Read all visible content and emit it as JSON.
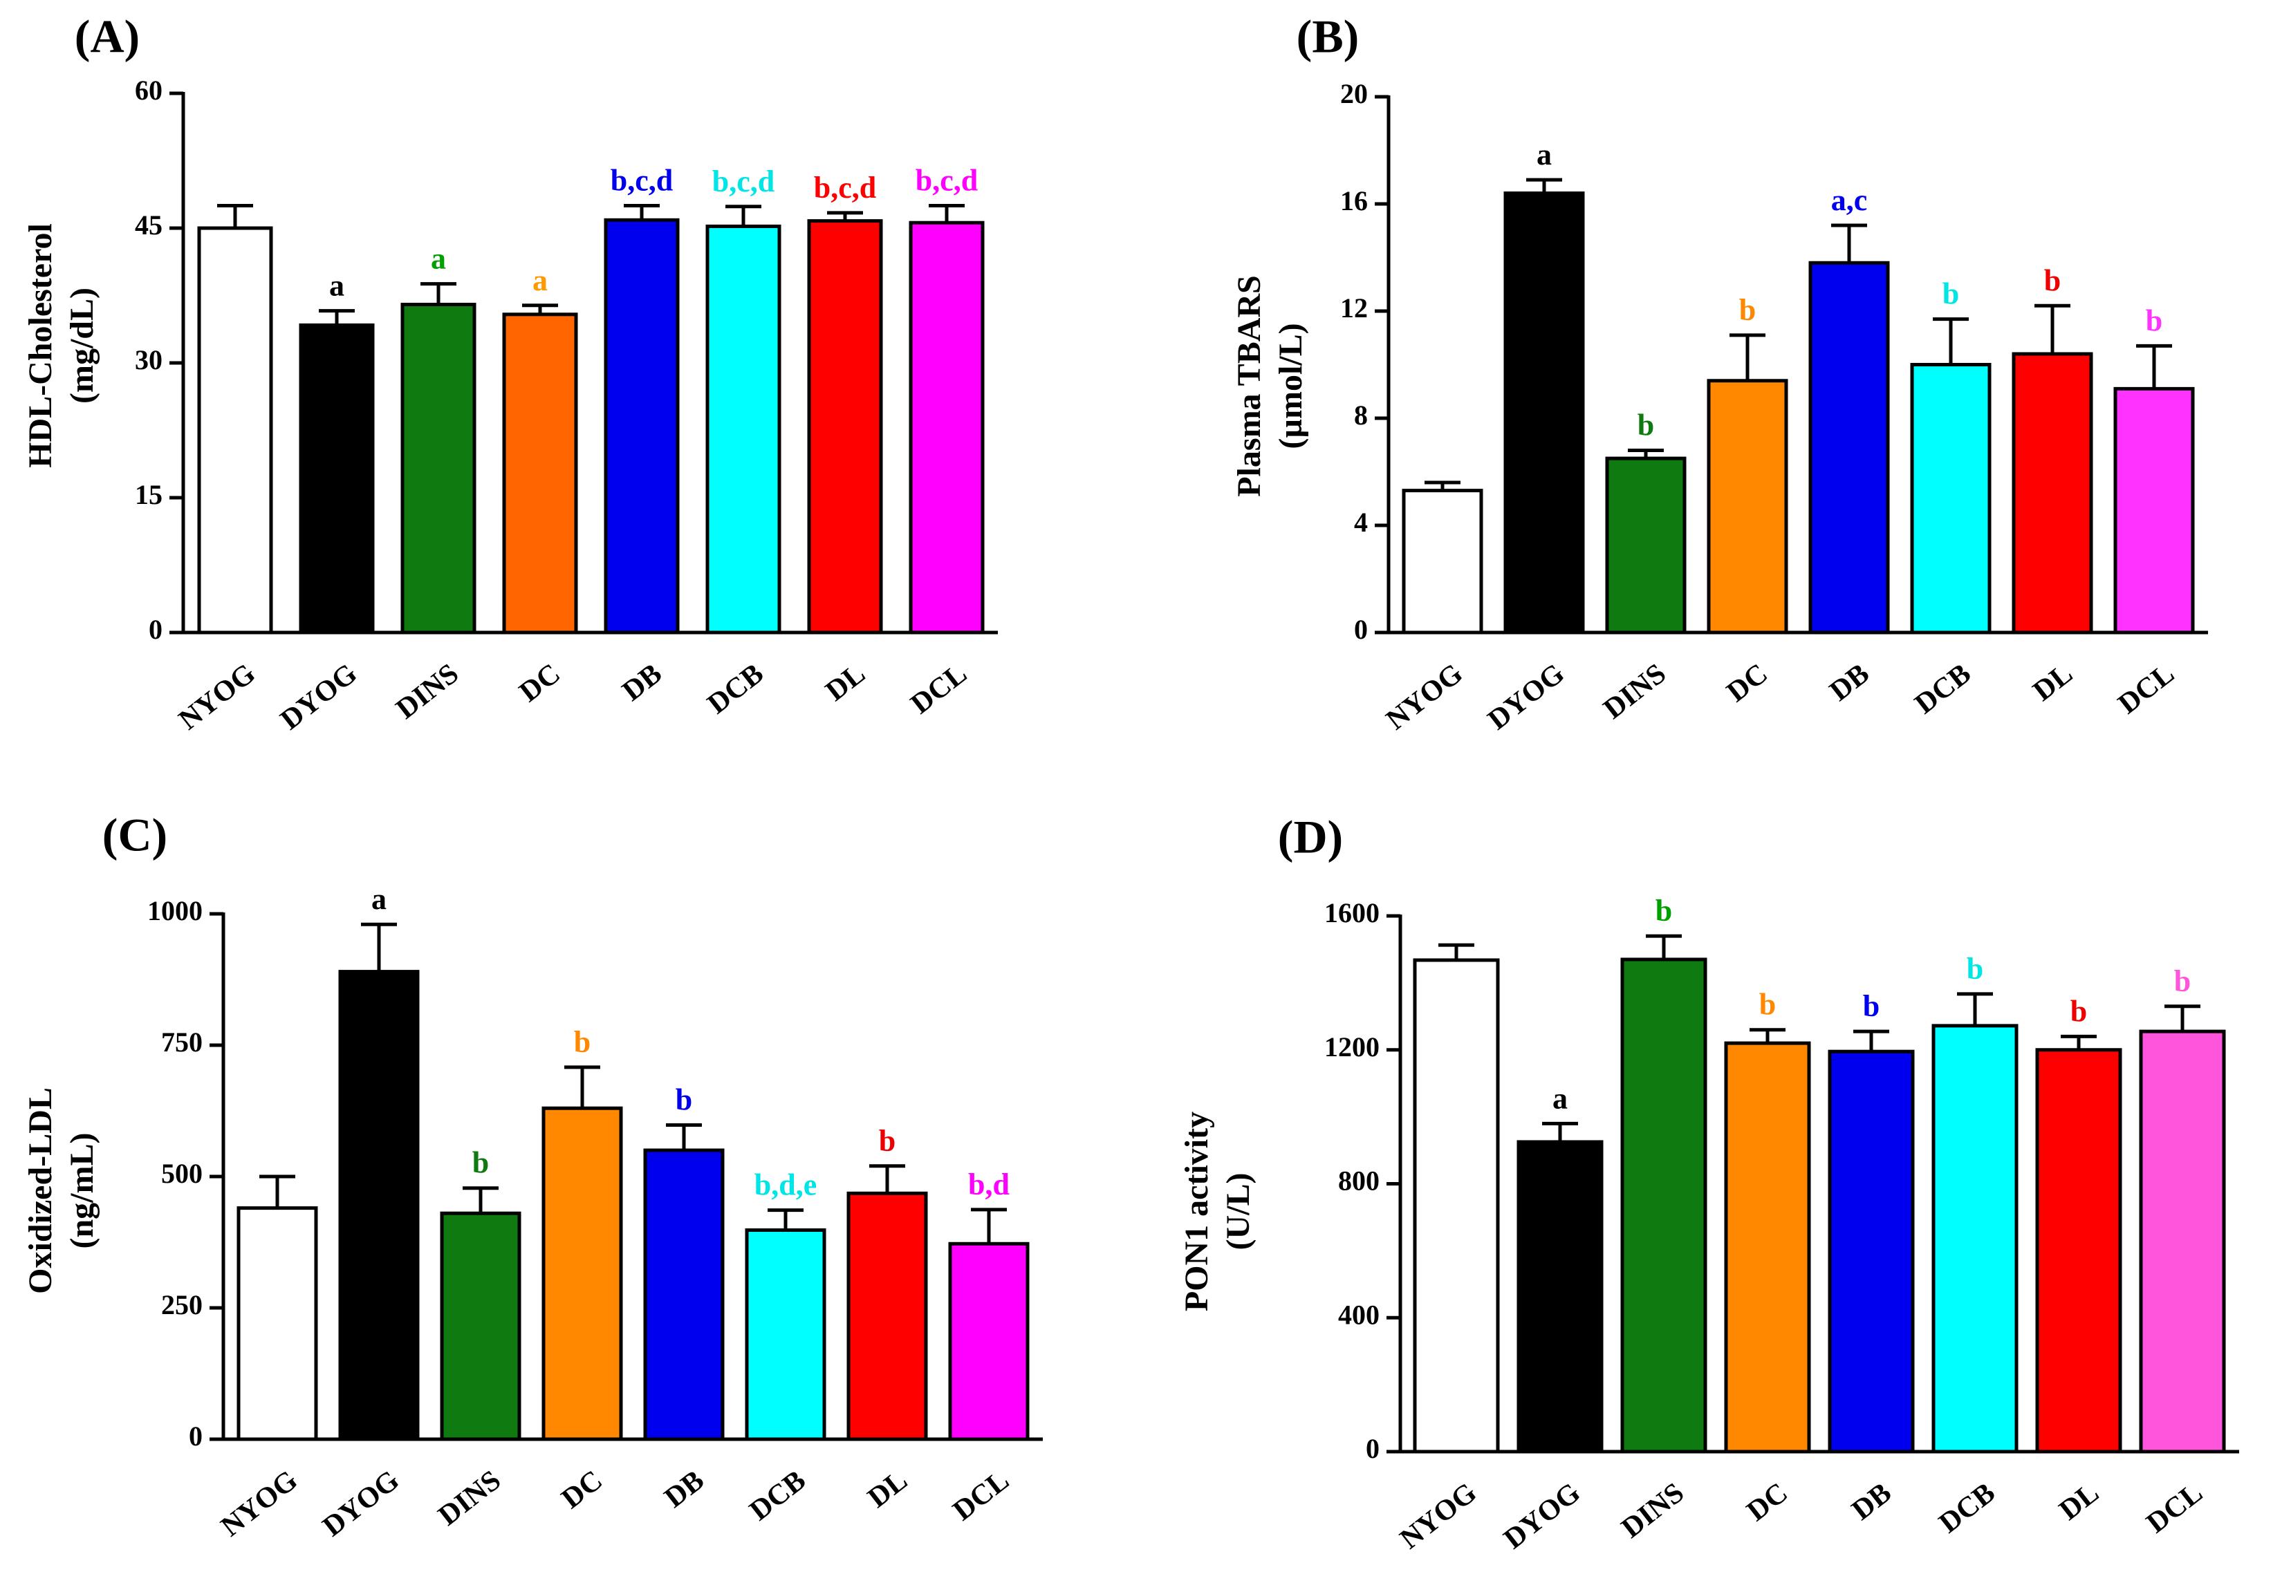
{
  "chart_data": [
    {
      "type": "bar",
      "panel_label": "(A)",
      "ylabel_lines": [
        "HDL-Cholesterol",
        "(mg/dL)"
      ],
      "categories": [
        "NYOG",
        "DYOG",
        "DINS",
        "DC",
        "DB",
        "DCB",
        "DL",
        "DCL"
      ],
      "values": [
        45,
        34.2,
        36.5,
        35.4,
        45.9,
        45.2,
        45.8,
        45.6
      ],
      "errors": [
        2.5,
        1.6,
        2.3,
        1.0,
        1.6,
        2.2,
        0.9,
        1.9
      ],
      "significance": [
        "",
        "a",
        "a",
        "a",
        "b,c,d",
        "b,c,d",
        "b,c,d",
        "b,c,d"
      ],
      "ylim": [
        0,
        60
      ],
      "yticks": [
        0,
        15,
        30,
        45,
        60
      ],
      "colors": [
        "#ffffff",
        "#000000",
        "#0f7a0f",
        "#ff6600",
        "#0000ee",
        "#00ffff",
        "#ff0000",
        "#ff00ff"
      ],
      "label_colors": [
        "#000000",
        "#000000",
        "#00a000",
        "#ff9900",
        "#0000ee",
        "#00e5e5",
        "#ff0000",
        "#ff00ff"
      ]
    },
    {
      "type": "bar",
      "panel_label": "(B)",
      "ylabel_lines": [
        "Plasma TBARS",
        "(µmol/L)"
      ],
      "categories": [
        "NYOG",
        "DYOG",
        "DINS",
        "DC",
        "DB",
        "DCB",
        "DL",
        "DCL"
      ],
      "values": [
        5.3,
        16.4,
        6.5,
        9.4,
        13.8,
        10.0,
        10.4,
        9.1
      ],
      "errors": [
        0.3,
        0.5,
        0.3,
        1.7,
        1.4,
        1.7,
        1.8,
        1.6
      ],
      "significance": [
        "",
        "a",
        "b",
        "b",
        "a,c",
        "b",
        "b",
        "b"
      ],
      "ylim": [
        0,
        20
      ],
      "yticks": [
        0,
        4,
        8,
        12,
        16,
        20
      ],
      "colors": [
        "#ffffff",
        "#000000",
        "#0f7a0f",
        "#ff8800",
        "#0000ee",
        "#00ffff",
        "#ff0000",
        "#ff33ff"
      ],
      "label_colors": [
        "#000000",
        "#000000",
        "#0f7a0f",
        "#ff8800",
        "#0000ee",
        "#00e5e5",
        "#ee0000",
        "#ff33ff"
      ]
    },
    {
      "type": "bar",
      "panel_label": "(C)",
      "ylabel_lines": [
        "Oxidized-LDL",
        "(ng/mL)"
      ],
      "categories": [
        "NYOG",
        "DYOG",
        "DINS",
        "DC",
        "DB",
        "DCB",
        "DL",
        "DCL"
      ],
      "values": [
        440,
        890,
        430,
        630,
        550,
        398,
        468,
        372
      ],
      "errors": [
        60,
        90,
        48,
        78,
        48,
        38,
        52,
        65
      ],
      "significance": [
        "",
        "a",
        "b",
        "b",
        "b",
        "b,d,e",
        "b",
        "b,d"
      ],
      "ylim": [
        0,
        1000
      ],
      "yticks": [
        0,
        250,
        500,
        750,
        1000
      ],
      "colors": [
        "#ffffff",
        "#000000",
        "#0f7a0f",
        "#ff8800",
        "#0000ee",
        "#00ffff",
        "#ff0000",
        "#ff00ff"
      ],
      "label_colors": [
        "#000000",
        "#000000",
        "#0f7a0f",
        "#ff8800",
        "#0000ee",
        "#00e5e5",
        "#ee0000",
        "#ff00ff"
      ]
    },
    {
      "type": "bar",
      "panel_label": "(D)",
      "ylabel_lines": [
        "PON1 activity",
        "(U/L)"
      ],
      "categories": [
        "NYOG",
        "DYOG",
        "DINS",
        "DC",
        "DB",
        "DCB",
        "DL",
        "DCL"
      ],
      "values": [
        1468,
        925,
        1470,
        1220,
        1195,
        1272,
        1200,
        1255
      ],
      "errors": [
        45,
        55,
        70,
        40,
        60,
        95,
        40,
        75
      ],
      "significance": [
        "",
        "a",
        "b",
        "b",
        "b",
        "b",
        "b",
        "b"
      ],
      "ylim": [
        0,
        1600
      ],
      "yticks": [
        0,
        400,
        800,
        1200,
        1600
      ],
      "colors": [
        "#ffffff",
        "#000000",
        "#0f7a0f",
        "#ff8800",
        "#0000ee",
        "#00ffff",
        "#ff0000",
        "#ff55dd"
      ],
      "label_colors": [
        "#000000",
        "#000000",
        "#00a000",
        "#ff8800",
        "#0000ee",
        "#00e5e5",
        "#ee0000",
        "#ff55dd"
      ]
    }
  ]
}
